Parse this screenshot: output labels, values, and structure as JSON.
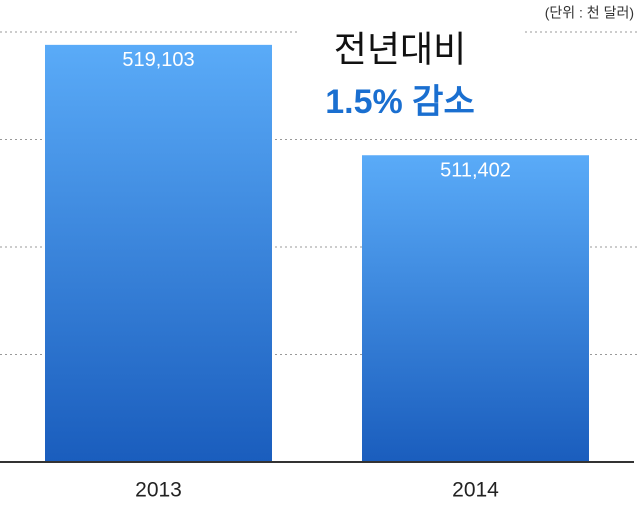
{
  "chart_data": {
    "type": "bar",
    "title": "전년대비",
    "subtitle": "1.5% 감소",
    "unit_note": "(단위 : 천 달러)",
    "categories": [
      "2013",
      "2014"
    ],
    "values": [
      519103,
      511402
    ],
    "value_labels": [
      "519,103",
      "511,402"
    ],
    "gradient": [
      "#5aabf8",
      "#1a5dbd"
    ],
    "ylim": [
      490000,
      520000
    ],
    "yticks": [
      490000,
      497500,
      505000,
      512500,
      520000
    ],
    "grid": true
  }
}
